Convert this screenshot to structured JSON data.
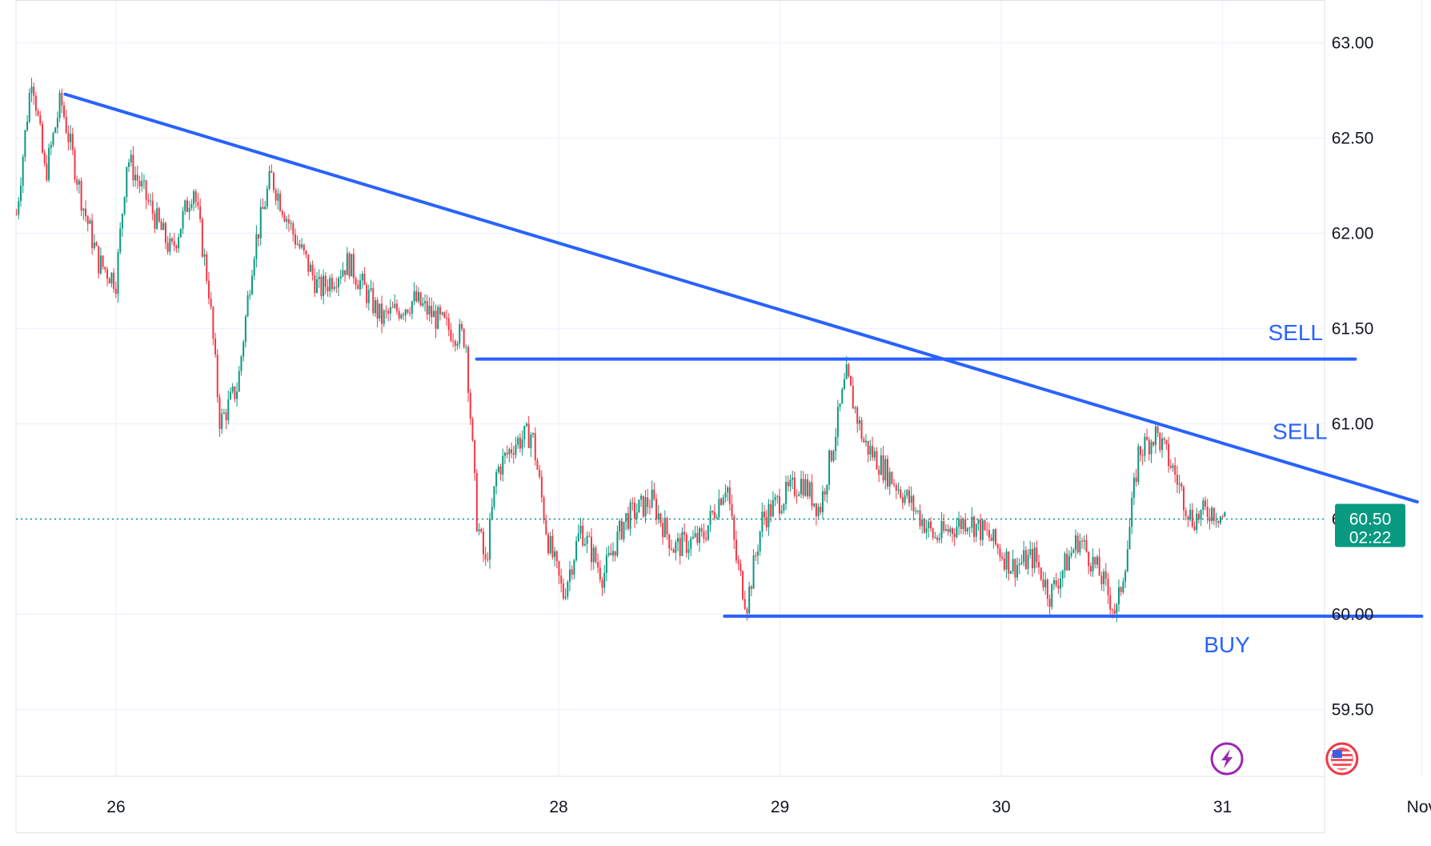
{
  "chart_data": {
    "type": "candlestick",
    "title": "",
    "xlabel": "",
    "ylabel": "",
    "ylim": [
      59.2,
      63.2
    ],
    "y_ticks": [
      59.5,
      60.0,
      60.5,
      61.0,
      61.5,
      62.0,
      62.5,
      63.0
    ],
    "y_tick_labels": [
      "59.50",
      "60.00",
      "60.50",
      "61.00",
      "61.50",
      "62.00",
      "62.50",
      "63.00"
    ],
    "x_range_days": [
      25.55,
      32.0
    ],
    "x_ticks": [
      {
        "day": 26.0,
        "label": "26"
      },
      {
        "day": 28.0,
        "label": "28"
      },
      {
        "day": 29.0,
        "label": "29"
      },
      {
        "day": 30.0,
        "label": "30"
      },
      {
        "day": 31.0,
        "label": "31"
      },
      {
        "day": 31.9,
        "label": "Nov"
      }
    ],
    "grid": true,
    "current_price": {
      "value": 60.5,
      "label": "60.50",
      "countdown": "02:22",
      "color": "#089981"
    },
    "colors": {
      "up": "#089981",
      "down": "#f23645",
      "annotation": "#2962ff",
      "grid": "#f0f3fa"
    },
    "price_path": [
      {
        "day": 25.55,
        "price": 62.1
      },
      {
        "day": 25.62,
        "price": 62.85
      },
      {
        "day": 25.68,
        "price": 62.3
      },
      {
        "day": 25.75,
        "price": 62.7
      },
      {
        "day": 25.85,
        "price": 62.15
      },
      {
        "day": 25.92,
        "price": 61.85
      },
      {
        "day": 26.0,
        "price": 61.75
      },
      {
        "day": 26.05,
        "price": 62.4
      },
      {
        "day": 26.15,
        "price": 62.15
      },
      {
        "day": 26.25,
        "price": 61.9
      },
      {
        "day": 26.35,
        "price": 62.25
      },
      {
        "day": 26.42,
        "price": 61.7
      },
      {
        "day": 26.47,
        "price": 61.0
      },
      {
        "day": 26.55,
        "price": 61.2
      },
      {
        "day": 26.62,
        "price": 61.9
      },
      {
        "day": 26.7,
        "price": 62.3
      },
      {
        "day": 26.8,
        "price": 62.0
      },
      {
        "day": 26.92,
        "price": 61.7
      },
      {
        "day": 27.05,
        "price": 61.85
      },
      {
        "day": 27.2,
        "price": 61.55
      },
      {
        "day": 27.35,
        "price": 61.65
      },
      {
        "day": 27.5,
        "price": 61.5
      },
      {
        "day": 27.58,
        "price": 61.45
      },
      {
        "day": 27.63,
        "price": 60.5
      },
      {
        "day": 27.67,
        "price": 60.25
      },
      {
        "day": 27.72,
        "price": 60.75
      },
      {
        "day": 27.8,
        "price": 60.9
      },
      {
        "day": 27.88,
        "price": 60.95
      },
      {
        "day": 27.95,
        "price": 60.4
      },
      {
        "day": 28.02,
        "price": 60.1
      },
      {
        "day": 28.1,
        "price": 60.45
      },
      {
        "day": 28.2,
        "price": 60.2
      },
      {
        "day": 28.3,
        "price": 60.5
      },
      {
        "day": 28.42,
        "price": 60.6
      },
      {
        "day": 28.52,
        "price": 60.35
      },
      {
        "day": 28.65,
        "price": 60.4
      },
      {
        "day": 28.76,
        "price": 60.7
      },
      {
        "day": 28.8,
        "price": 60.3
      },
      {
        "day": 28.85,
        "price": 60.05
      },
      {
        "day": 28.92,
        "price": 60.5
      },
      {
        "day": 29.0,
        "price": 60.6
      },
      {
        "day": 29.1,
        "price": 60.7
      },
      {
        "day": 29.18,
        "price": 60.55
      },
      {
        "day": 29.25,
        "price": 60.95
      },
      {
        "day": 29.3,
        "price": 61.25
      },
      {
        "day": 29.38,
        "price": 60.9
      },
      {
        "day": 29.48,
        "price": 60.75
      },
      {
        "day": 29.58,
        "price": 60.6
      },
      {
        "day": 29.7,
        "price": 60.4
      },
      {
        "day": 29.85,
        "price": 60.5
      },
      {
        "day": 29.95,
        "price": 60.4
      },
      {
        "day": 30.05,
        "price": 60.25
      },
      {
        "day": 30.15,
        "price": 60.3
      },
      {
        "day": 30.22,
        "price": 60.1
      },
      {
        "day": 30.35,
        "price": 60.4
      },
      {
        "day": 30.45,
        "price": 60.2
      },
      {
        "day": 30.52,
        "price": 60.0
      },
      {
        "day": 30.57,
        "price": 60.35
      },
      {
        "day": 30.62,
        "price": 60.85
      },
      {
        "day": 30.7,
        "price": 60.95
      },
      {
        "day": 30.78,
        "price": 60.75
      },
      {
        "day": 30.86,
        "price": 60.5
      },
      {
        "day": 30.95,
        "price": 60.55
      },
      {
        "day": 31.02,
        "price": 60.5
      }
    ],
    "annotations": [
      {
        "type": "trendline",
        "from": {
          "day": 25.77,
          "price": 62.73
        },
        "to": {
          "day": 31.88,
          "price": 60.59
        },
        "color": "#2962ff"
      },
      {
        "type": "hline",
        "price": 61.34,
        "from_day": 27.63,
        "to_day": 31.6,
        "color": "#2962ff"
      },
      {
        "type": "hline",
        "price": 59.99,
        "from_day": 28.75,
        "to_day": 31.9,
        "color": "#2962ff"
      },
      {
        "type": "text",
        "text": "SELL",
        "day": 31.33,
        "price": 61.44,
        "color": "#2962ff"
      },
      {
        "type": "text",
        "text": "SELL",
        "day": 31.35,
        "price": 60.92,
        "color": "#2962ff"
      },
      {
        "type": "text",
        "text": "BUY",
        "day": 31.02,
        "price": 59.8,
        "color": "#2962ff"
      }
    ],
    "event_icons": [
      {
        "name": "lightning-icon",
        "day": 31.02,
        "color": "#9c27b0"
      },
      {
        "name": "us-flag-icon",
        "day": 31.54,
        "color": "#f23645"
      }
    ]
  }
}
